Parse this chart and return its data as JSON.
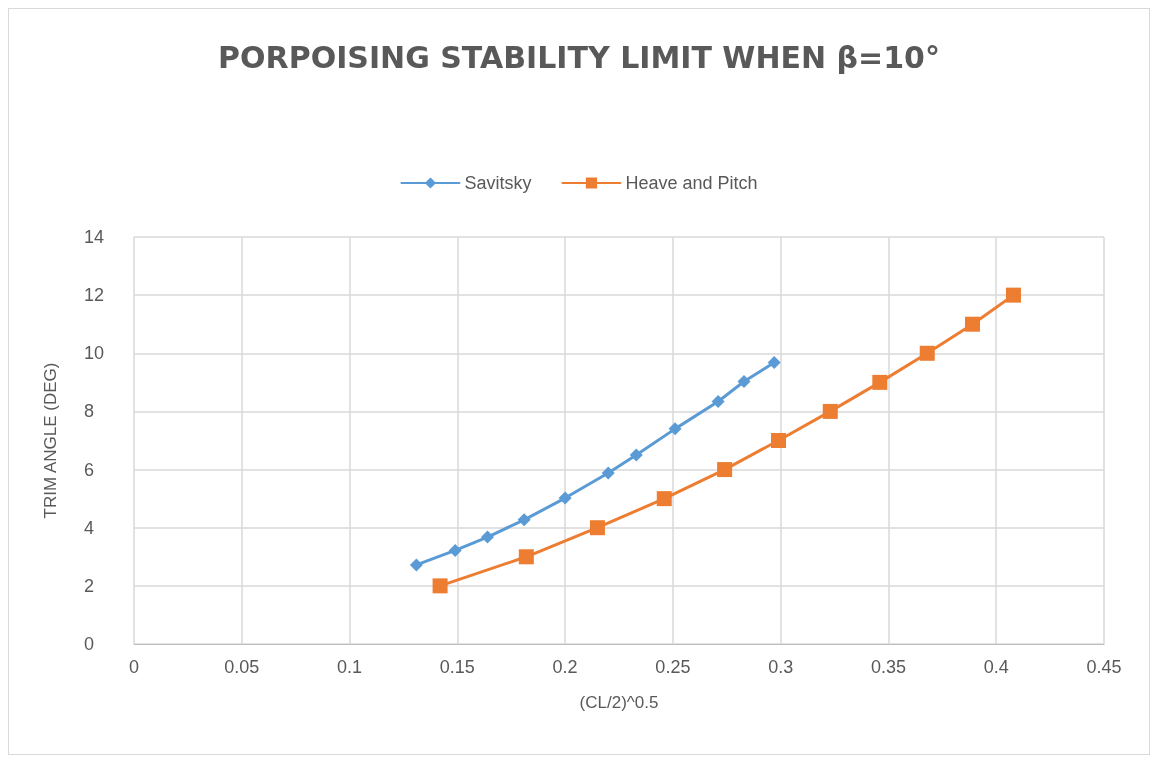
{
  "chart_data": {
    "type": "line",
    "title": "PORPOISING STABILITY LIMIT WHEN β=10°",
    "xlabel": "(CL/2)^0.5",
    "ylabel": "TRIM ANGLE (DEG)",
    "legend": "top",
    "grid": true,
    "line_style": "solid",
    "xlim": [
      0,
      0.45
    ],
    "xticks": [
      0,
      0.05,
      0.1,
      0.15,
      0.2,
      0.25,
      0.3,
      0.35,
      0.4,
      0.45
    ],
    "ylim": [
      0,
      14
    ],
    "yticks": [
      0,
      2,
      4,
      6,
      8,
      10,
      12,
      14
    ],
    "series": [
      {
        "name": "Savitsky",
        "color": "#5b9bd5",
        "marker": "diamond",
        "x": [
          0.131,
          0.149,
          0.164,
          0.181,
          0.2,
          0.22,
          0.233,
          0.251,
          0.271,
          0.283,
          0.297
        ],
        "values": [
          2.72,
          3.22,
          3.68,
          4.27,
          5.02,
          5.88,
          6.5,
          7.4,
          8.34,
          9.03,
          9.68
        ]
      },
      {
        "name": "Heave and Pitch",
        "color": "#ed7d31",
        "marker": "square",
        "x": [
          0.142,
          0.182,
          0.215,
          0.246,
          0.274,
          0.299,
          0.323,
          0.346,
          0.368,
          0.389,
          0.408
        ],
        "values": [
          2,
          3,
          4,
          5,
          6,
          7,
          8,
          9,
          10,
          11,
          12
        ]
      }
    ]
  }
}
